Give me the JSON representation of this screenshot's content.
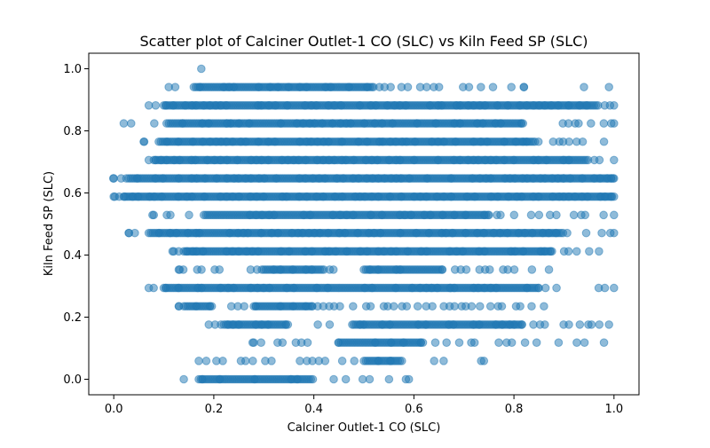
{
  "chart_data": {
    "type": "scatter",
    "title": "Scatter plot of Calciner Outlet-1 CO (SLC) vs Kiln Feed  SP (SLC)",
    "xlabel": "Calciner Outlet-1 CO (SLC)",
    "ylabel": "Kiln Feed  SP (SLC)",
    "xlim": [
      -0.05,
      1.05
    ],
    "ylim": [
      -0.05,
      1.05
    ],
    "x_ticks": [
      0.0,
      0.2,
      0.4,
      0.6,
      0.8,
      1.0
    ],
    "y_ticks": [
      0.0,
      0.2,
      0.4,
      0.6,
      0.8,
      1.0
    ],
    "x_tick_labels": [
      "0.0",
      "0.2",
      "0.4",
      "0.6",
      "0.8",
      "1.0"
    ],
    "y_tick_labels": [
      "0.0",
      "0.2",
      "0.4",
      "0.6",
      "0.8",
      "1.0"
    ],
    "grid": false,
    "marker_color": "#1f77b4",
    "marker_alpha": 0.5,
    "bands": [
      {
        "y": 1.0,
        "segments": [
          [
            0.175,
            0.175
          ]
        ],
        "density": 0
      },
      {
        "y": 0.941,
        "segments": [
          [
            0.11,
            0.82
          ]
        ],
        "density": 0.55,
        "dense": [
          [
            0.16,
            0.52
          ]
        ],
        "extra": [
          0.94,
          0.99
        ]
      },
      {
        "y": 0.882,
        "segments": [
          [
            0.07,
            1.0
          ]
        ],
        "density": 0.9,
        "dense": [
          [
            0.1,
            0.97
          ]
        ]
      },
      {
        "y": 0.824,
        "segments": [
          [
            0.02,
            1.0
          ]
        ],
        "density": 0.75,
        "dense": [
          [
            0.11,
            0.82
          ]
        ]
      },
      {
        "y": 0.765,
        "segments": [
          [
            0.06,
            0.98
          ]
        ],
        "density": 0.8,
        "dense": [
          [
            0.09,
            0.84
          ]
        ]
      },
      {
        "y": 0.706,
        "segments": [
          [
            0.07,
            1.0
          ]
        ],
        "density": 0.9,
        "dense": [
          [
            0.08,
            0.95
          ]
        ]
      },
      {
        "y": 0.647,
        "segments": [
          [
            0.0,
            1.0
          ]
        ],
        "density": 0.95,
        "dense": [
          [
            0.03,
            1.0
          ]
        ]
      },
      {
        "y": 0.588,
        "segments": [
          [
            0.0,
            1.0
          ]
        ],
        "density": 0.97,
        "dense": [
          [
            0.02,
            1.0
          ]
        ]
      },
      {
        "y": 0.529,
        "segments": [
          [
            0.08,
            1.0
          ]
        ],
        "density": 0.7,
        "dense": [
          [
            0.18,
            0.75
          ]
        ]
      },
      {
        "y": 0.471,
        "segments": [
          [
            0.03,
            1.0
          ]
        ],
        "density": 0.8,
        "dense": [
          [
            0.07,
            0.9
          ]
        ]
      },
      {
        "y": 0.412,
        "segments": [
          [
            0.12,
            0.97
          ]
        ],
        "density": 0.7,
        "dense": [
          [
            0.14,
            0.88
          ]
        ]
      },
      {
        "y": 0.353,
        "segments": [
          [
            0.13,
            0.87
          ]
        ],
        "density": 0.45,
        "dense": [
          [
            0.3,
            0.42
          ],
          [
            0.5,
            0.66
          ]
        ]
      },
      {
        "y": 0.294,
        "segments": [
          [
            0.07,
            1.0
          ]
        ],
        "density": 0.8,
        "dense": [
          [
            0.1,
            0.85
          ]
        ]
      },
      {
        "y": 0.235,
        "segments": [
          [
            0.13,
            0.86
          ]
        ],
        "density": 0.45,
        "dense": [
          [
            0.14,
            0.2
          ],
          [
            0.28,
            0.4
          ]
        ]
      },
      {
        "y": 0.176,
        "segments": [
          [
            0.19,
            0.99
          ]
        ],
        "density": 0.55,
        "dense": [
          [
            0.22,
            0.35
          ],
          [
            0.48,
            0.82
          ]
        ]
      },
      {
        "y": 0.118,
        "segments": [
          [
            0.28,
            0.98
          ]
        ],
        "density": 0.35,
        "dense": [
          [
            0.45,
            0.62
          ]
        ]
      },
      {
        "y": 0.059,
        "segments": [
          [
            0.17,
            0.74
          ]
        ],
        "density": 0.35,
        "dense": [
          [
            0.5,
            0.58
          ]
        ]
      },
      {
        "y": 0.0,
        "segments": [
          [
            0.14,
            0.59
          ]
        ],
        "density": 0.55,
        "dense": [
          [
            0.17,
            0.4
          ]
        ]
      }
    ]
  }
}
